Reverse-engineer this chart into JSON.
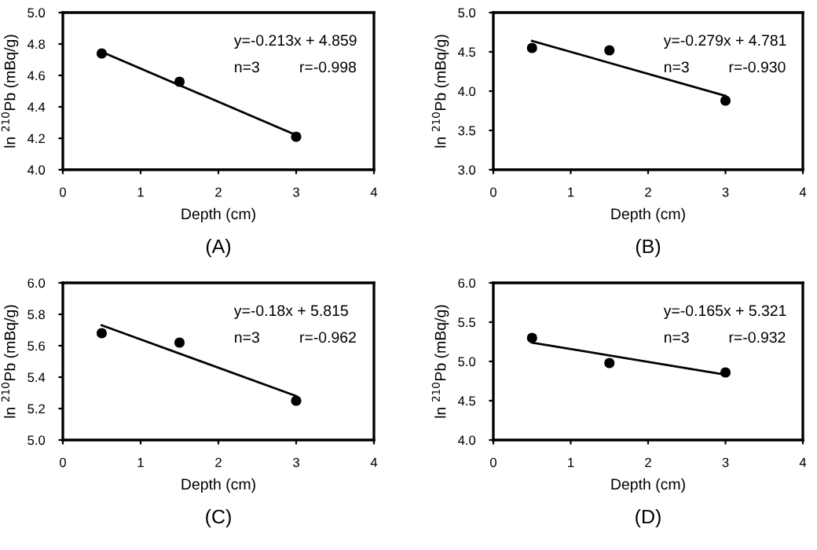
{
  "chart_data": [
    {
      "type": "scatter",
      "title": "(A)",
      "xlabel": "Depth (cm)",
      "ylabel": "ln $^{210}$Pb (mBq/g)",
      "annotations": [
        "y=-0.213x + 4.859",
        "n=3",
        "r=-0.998"
      ],
      "xlim": [
        0,
        4
      ],
      "xticks": [
        0,
        1,
        2,
        3,
        4
      ],
      "ylim": [
        4.0,
        5.0
      ],
      "yticks": [
        {
          "value": 4.0,
          "label": "4.0"
        },
        {
          "value": 4.2,
          "label": "4.2"
        },
        {
          "value": 4.4,
          "label": "4.4"
        },
        {
          "value": 4.6,
          "label": "4.6"
        },
        {
          "value": 4.8,
          "label": "4.8"
        },
        {
          "value": 5.0,
          "label": "5.0"
        }
      ],
      "grid": false,
      "legend": false,
      "series": [
        {
          "marker": "circle",
          "color": "#000000",
          "x": [
            0.5,
            1.5,
            3
          ],
          "values": [
            4.74,
            4.56,
            4.21
          ]
        },
        {
          "type": "line",
          "color": "#000000",
          "x": [
            0.5,
            3
          ],
          "values": [
            4.75,
            4.22
          ]
        }
      ]
    },
    {
      "type": "scatter",
      "title": "(B)",
      "xlabel": "Depth (cm)",
      "ylabel": "ln $^{210}$Pb (mBq/g)",
      "annotations": [
        "y=-0.279x + 4.781",
        "n=3",
        "r=-0.930"
      ],
      "xlim": [
        0,
        4
      ],
      "xticks": [
        0,
        1,
        2,
        3,
        4
      ],
      "ylim": [
        3.0,
        5.0
      ],
      "yticks": [
        {
          "value": 3.0,
          "label": "3.0"
        },
        {
          "value": 3.5,
          "label": "3.5"
        },
        {
          "value": 4.0,
          "label": "4.0"
        },
        {
          "value": 4.5,
          "label": "4.5"
        },
        {
          "value": 5.0,
          "label": "5.0"
        }
      ],
      "grid": false,
      "legend": false,
      "series": [
        {
          "marker": "circle",
          "color": "#000000",
          "x": [
            0.5,
            1.5,
            3
          ],
          "values": [
            4.55,
            4.52,
            3.88
          ]
        },
        {
          "type": "line",
          "color": "#000000",
          "x": [
            0.5,
            3
          ],
          "values": [
            4.64,
            3.94
          ]
        }
      ]
    },
    {
      "type": "scatter",
      "title": "(C)",
      "xlabel": "Depth (cm)",
      "ylabel": "ln $^{210}$Pb (mBq/g)",
      "annotations": [
        "y=-0.18x + 5.815",
        "n=3",
        "r=-0.962"
      ],
      "xlim": [
        0,
        4
      ],
      "xticks": [
        0,
        1,
        2,
        3,
        4
      ],
      "ylim": [
        5.0,
        6.0
      ],
      "yticks": [
        {
          "value": 5.0,
          "label": "5.0"
        },
        {
          "value": 5.2,
          "label": "5.2"
        },
        {
          "value": 5.4,
          "label": "5.4"
        },
        {
          "value": 5.6,
          "label": "5.6"
        },
        {
          "value": 5.8,
          "label": "5.8"
        },
        {
          "value": 6.0,
          "label": "6.0"
        }
      ],
      "grid": false,
      "legend": false,
      "series": [
        {
          "marker": "circle",
          "color": "#000000",
          "x": [
            0.5,
            1.5,
            3
          ],
          "values": [
            5.68,
            5.62,
            5.25
          ]
        },
        {
          "type": "line",
          "color": "#000000",
          "x": [
            0.5,
            3
          ],
          "values": [
            5.73,
            5.28
          ]
        }
      ]
    },
    {
      "type": "scatter",
      "title": "(D)",
      "xlabel": "Depth (cm)",
      "ylabel": "ln $^{210}$Pb (mBq/g)",
      "annotations": [
        "y=-0.165x + 5.321",
        "n=3",
        "r=-0.932"
      ],
      "xlim": [
        0,
        4
      ],
      "xticks": [
        0,
        1,
        2,
        3,
        4
      ],
      "ylim": [
        4.0,
        6.0
      ],
      "yticks": [
        {
          "value": 4.0,
          "label": "4.0"
        },
        {
          "value": 4.5,
          "label": "4.5"
        },
        {
          "value": 5.0,
          "label": "5.0"
        },
        {
          "value": 5.5,
          "label": "5.5"
        },
        {
          "value": 6.0,
          "label": "6.0"
        }
      ],
      "grid": false,
      "legend": false,
      "series": [
        {
          "marker": "circle",
          "color": "#000000",
          "x": [
            0.5,
            1.5,
            3
          ],
          "values": [
            5.3,
            4.98,
            4.86
          ]
        },
        {
          "type": "line",
          "color": "#000000",
          "x": [
            0.5,
            3
          ],
          "values": [
            5.24,
            4.83
          ]
        }
      ]
    }
  ]
}
